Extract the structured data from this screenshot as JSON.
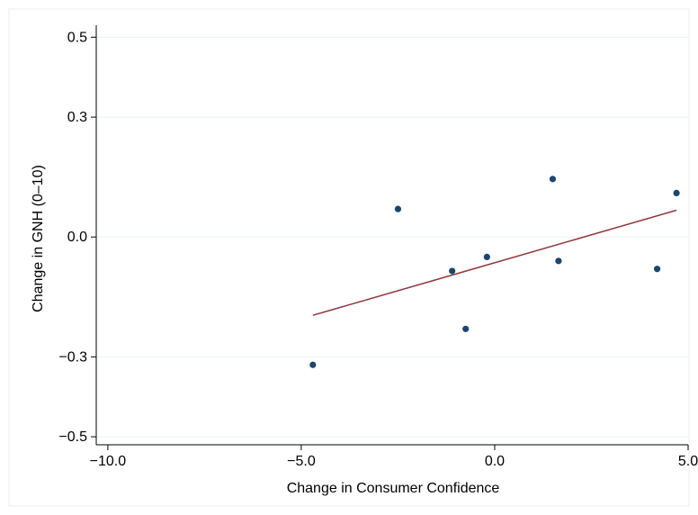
{
  "chart_data": {
    "type": "scatter",
    "xlabel": "Change in Consumer Confidence",
    "ylabel": "Change in GNH (0–10)",
    "xlim": [
      -10.3,
      5.0
    ],
    "ylim": [
      -0.52,
      0.53
    ],
    "xticks": [
      -10,
      -5,
      0,
      5
    ],
    "xtick_labels": [
      "−10.0",
      "−5.0",
      "0.0",
      "5.0"
    ],
    "yticks": [
      -0.5,
      -0.3,
      0.0,
      0.3,
      0.5
    ],
    "ytick_labels": [
      "−0.5",
      "−0.3",
      "0.0",
      "0.3",
      "0.5"
    ],
    "grid": true,
    "points": [
      {
        "x": -4.7,
        "y": -0.32
      },
      {
        "x": -2.5,
        "y": 0.07
      },
      {
        "x": -1.1,
        "y": -0.085
      },
      {
        "x": -0.75,
        "y": -0.23
      },
      {
        "x": -0.2,
        "y": -0.05
      },
      {
        "x": 1.5,
        "y": 0.145
      },
      {
        "x": 1.65,
        "y": -0.06
      },
      {
        "x": 4.2,
        "y": -0.08
      },
      {
        "x": 4.7,
        "y": 0.11
      }
    ],
    "fit_line": {
      "x": [
        -4.7,
        4.7
      ],
      "y": [
        -0.196,
        0.067
      ]
    },
    "colors": {
      "points": "#1a476f",
      "fit_line": "#90353b",
      "grid": "#eaf2f3",
      "axis": "#000000",
      "background": "#ffffff"
    }
  }
}
